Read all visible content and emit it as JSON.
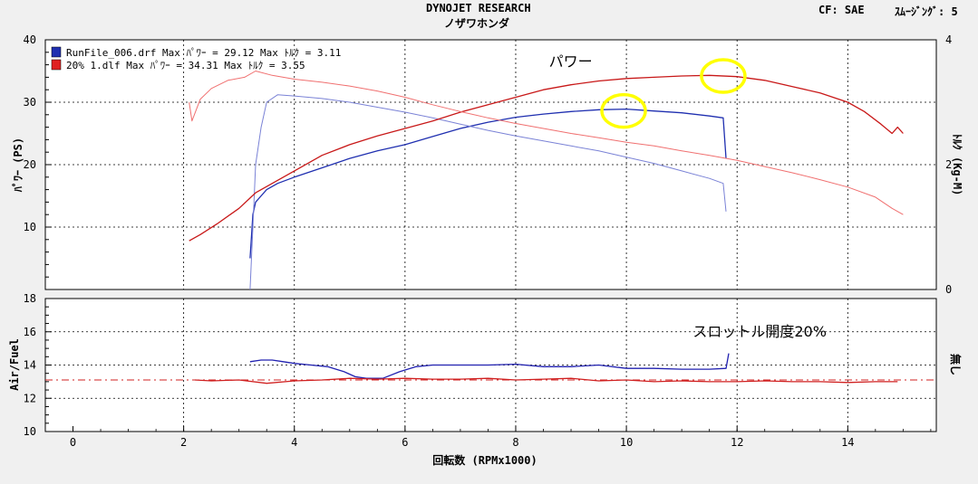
{
  "header": {
    "title": "DYNOJET  RESEARCH",
    "subtitle": "ノザワホンダ",
    "cf_label": "CF: SAE",
    "smoothing_label": "ｽﾑｰｼﾞﾝｸﾞ: 5"
  },
  "colors": {
    "power_blue": "#1f2fb0",
    "torque_blue": "#7a82d6",
    "power_red": "#c81818",
    "torque_red": "#f07070",
    "af_blue": "#2020b0",
    "af_red": "#d02020",
    "highlight": "#ffff00"
  },
  "chart_data": [
    {
      "type": "line",
      "xlabel": "回転数 (RPMx1000)",
      "ylabel": "ﾊﾟﾜｰ (PS)",
      "y2label": "ﾄﾙｸ (Kg-M)",
      "xlim": [
        -0.5,
        15.6
      ],
      "ylim": [
        0,
        40
      ],
      "y2lim": [
        0,
        4
      ],
      "xticks": [
        "0",
        "2",
        "4",
        "6",
        "8",
        "10",
        "12",
        "14"
      ],
      "xtick_values": [
        0,
        2,
        4,
        6,
        8,
        10,
        12,
        14
      ],
      "yticks": [
        "10",
        "20",
        "30",
        "40"
      ],
      "ytick_values": [
        10,
        20,
        30,
        40
      ],
      "y2ticks": [
        "0",
        "2",
        "4"
      ],
      "y2tick_values": [
        0,
        2,
        4
      ],
      "grid": true,
      "legend": {
        "placement": "top-left",
        "entries": [
          {
            "text": "RunFile_006.drf Max ﾊﾟﾜｰ = 29.12  Max ﾄﾙｸ = 3.11",
            "color": "#1f2fb0"
          },
          {
            "text": "20% 1.dlf Max ﾊﾟﾜｰ = 34.31  Max ﾄﾙｸ = 3.55",
            "color": "#e02020"
          }
        ]
      },
      "annotations": [
        {
          "text": "パワー",
          "x": 8.6,
          "y": 36
        },
        {
          "text": "スロットル開度20%",
          "x": 11.2,
          "y": -6
        }
      ],
      "highlights": [
        {
          "x": 9.95,
          "y": 28.6
        },
        {
          "x": 11.75,
          "y": 34.2
        }
      ],
      "series": [
        {
          "name": "RunFile_006.drf",
          "kind": "power",
          "color": "#1f2fb0",
          "width": 1.3,
          "points": [
            [
              3.2,
              5
            ],
            [
              3.25,
              12
            ],
            [
              3.3,
              14
            ],
            [
              3.4,
              15
            ],
            [
              3.5,
              16
            ],
            [
              3.7,
              17
            ],
            [
              4,
              18
            ],
            [
              4.5,
              19.5
            ],
            [
              5,
              21
            ],
            [
              5.5,
              22.2
            ],
            [
              6,
              23.2
            ],
            [
              6.5,
              24.5
            ],
            [
              7,
              25.8
            ],
            [
              7.5,
              26.8
            ],
            [
              8,
              27.6
            ],
            [
              8.5,
              28.1
            ],
            [
              9,
              28.5
            ],
            [
              9.5,
              28.8
            ],
            [
              10,
              28.9
            ],
            [
              10.5,
              28.6
            ],
            [
              11,
              28.3
            ],
            [
              11.5,
              27.8
            ],
            [
              11.75,
              27.5
            ],
            [
              11.8,
              21
            ]
          ]
        },
        {
          "name": "RunFile_006.drf",
          "kind": "torque",
          "color": "#7a82d6",
          "width": 1,
          "points": [
            [
              3.2,
              0
            ],
            [
              3.25,
              10
            ],
            [
              3.3,
              20
            ],
            [
              3.4,
              26
            ],
            [
              3.5,
              30
            ],
            [
              3.7,
              31.2
            ],
            [
              4,
              31
            ],
            [
              4.5,
              30.6
            ],
            [
              5,
              30
            ],
            [
              5.5,
              29.2
            ],
            [
              6,
              28.4
            ],
            [
              6.5,
              27.5
            ],
            [
              7,
              26.5
            ],
            [
              7.5,
              25.5
            ],
            [
              8,
              24.6
            ],
            [
              8.5,
              23.8
            ],
            [
              9,
              23
            ],
            [
              9.5,
              22.2
            ],
            [
              10,
              21.2
            ],
            [
              10.5,
              20.2
            ],
            [
              11,
              19
            ],
            [
              11.5,
              17.8
            ],
            [
              11.75,
              17
            ],
            [
              11.8,
              12.5
            ]
          ]
        },
        {
          "name": "20% 1.dlf",
          "kind": "power",
          "color": "#c81818",
          "width": 1.3,
          "points": [
            [
              2.1,
              7.8
            ],
            [
              2.3,
              8.8
            ],
            [
              2.6,
              10.5
            ],
            [
              3,
              13
            ],
            [
              3.3,
              15.5
            ],
            [
              3.7,
              17.5
            ],
            [
              4,
              19
            ],
            [
              4.5,
              21.5
            ],
            [
              5,
              23.2
            ],
            [
              5.5,
              24.6
            ],
            [
              6,
              25.8
            ],
            [
              6.5,
              27
            ],
            [
              7,
              28.4
            ],
            [
              7.5,
              29.6
            ],
            [
              8,
              30.8
            ],
            [
              8.5,
              32
            ],
            [
              9,
              32.8
            ],
            [
              9.5,
              33.4
            ],
            [
              10,
              33.8
            ],
            [
              10.5,
              34
            ],
            [
              11,
              34.2
            ],
            [
              11.5,
              34.3
            ],
            [
              12,
              34.1
            ],
            [
              12.5,
              33.5
            ],
            [
              13,
              32.5
            ],
            [
              13.5,
              31.5
            ],
            [
              14,
              30
            ],
            [
              14.3,
              28.5
            ],
            [
              14.6,
              26.5
            ],
            [
              14.8,
              25
            ],
            [
              14.9,
              26
            ],
            [
              15,
              25
            ]
          ]
        },
        {
          "name": "20% 1.dlf",
          "kind": "torque",
          "color": "#f07070",
          "width": 1,
          "points": [
            [
              2.1,
              30
            ],
            [
              2.15,
              27
            ],
            [
              2.3,
              30.5
            ],
            [
              2.5,
              32.2
            ],
            [
              2.8,
              33.5
            ],
            [
              3.1,
              34
            ],
            [
              3.3,
              35
            ],
            [
              3.6,
              34.3
            ],
            [
              4,
              33.7
            ],
            [
              4.5,
              33.2
            ],
            [
              5,
              32.6
            ],
            [
              5.5,
              31.8
            ],
            [
              6,
              30.8
            ],
            [
              6.5,
              29.6
            ],
            [
              7,
              28.5
            ],
            [
              7.5,
              27.5
            ],
            [
              8,
              26.6
            ],
            [
              8.5,
              25.8
            ],
            [
              9,
              25
            ],
            [
              9.5,
              24.3
            ],
            [
              10,
              23.6
            ],
            [
              10.5,
              23
            ],
            [
              11,
              22.2
            ],
            [
              11.5,
              21.5
            ],
            [
              12,
              20.7
            ],
            [
              12.5,
              19.7
            ],
            [
              13,
              18.7
            ],
            [
              13.5,
              17.6
            ],
            [
              14,
              16.4
            ],
            [
              14.5,
              14.8
            ],
            [
              14.8,
              13
            ],
            [
              15,
              12
            ]
          ]
        }
      ]
    },
    {
      "type": "line",
      "xlabel": "回転数 (RPMx1000)",
      "ylabel": "Air/Fuel",
      "y2label": "無し",
      "xlim": [
        -0.5,
        15.6
      ],
      "ylim": [
        10,
        18
      ],
      "yticks": [
        "10",
        "12",
        "14",
        "16",
        "18"
      ],
      "ytick_values": [
        10,
        12,
        14,
        16,
        18
      ],
      "grid": true,
      "series": [
        {
          "name": "RunFile_006.drf",
          "kind": "air-fuel",
          "color": "#2020b0",
          "width": 1.3,
          "points": [
            [
              3.2,
              14.2
            ],
            [
              3.4,
              14.3
            ],
            [
              3.6,
              14.3
            ],
            [
              3.8,
              14.2
            ],
            [
              4,
              14.1
            ],
            [
              4.3,
              14
            ],
            [
              4.6,
              13.9
            ],
            [
              4.9,
              13.6
            ],
            [
              5.1,
              13.3
            ],
            [
              5.3,
              13.2
            ],
            [
              5.6,
              13.2
            ],
            [
              5.9,
              13.6
            ],
            [
              6.2,
              13.9
            ],
            [
              6.5,
              14
            ],
            [
              7,
              14
            ],
            [
              7.5,
              14
            ],
            [
              8,
              14.05
            ],
            [
              8.5,
              13.9
            ],
            [
              9,
              13.9
            ],
            [
              9.5,
              14
            ],
            [
              10,
              13.8
            ],
            [
              10.5,
              13.8
            ],
            [
              11,
              13.75
            ],
            [
              11.5,
              13.75
            ],
            [
              11.8,
              13.8
            ],
            [
              11.85,
              14.7
            ]
          ]
        },
        {
          "name": "20% 1.dlf",
          "kind": "air-fuel",
          "color": "#d02020",
          "width": 1.3,
          "points": [
            [
              2.2,
              13.1
            ],
            [
              2.5,
              13.05
            ],
            [
              3,
              13.1
            ],
            [
              3.5,
              12.9
            ],
            [
              4,
              13.05
            ],
            [
              4.5,
              13.1
            ],
            [
              5,
              13.2
            ],
            [
              5.5,
              13.15
            ],
            [
              6,
              13.2
            ],
            [
              6.5,
              13.15
            ],
            [
              7,
              13.15
            ],
            [
              7.5,
              13.2
            ],
            [
              8,
              13.1
            ],
            [
              8.5,
              13.15
            ],
            [
              9,
              13.2
            ],
            [
              9.5,
              13.05
            ],
            [
              10,
              13.1
            ],
            [
              10.5,
              13
            ],
            [
              11,
              13.05
            ],
            [
              11.5,
              13
            ],
            [
              12,
              13
            ],
            [
              12.5,
              13.05
            ],
            [
              13,
              13
            ],
            [
              13.5,
              13
            ],
            [
              14,
              12.95
            ],
            [
              14.5,
              13
            ],
            [
              14.9,
              13
            ]
          ]
        },
        {
          "name": "",
          "kind": "reference",
          "color": "#d02020",
          "width": 1,
          "dashed": true,
          "points": [
            [
              -0.5,
              13.1
            ],
            [
              15.6,
              13.1
            ]
          ]
        }
      ]
    }
  ]
}
